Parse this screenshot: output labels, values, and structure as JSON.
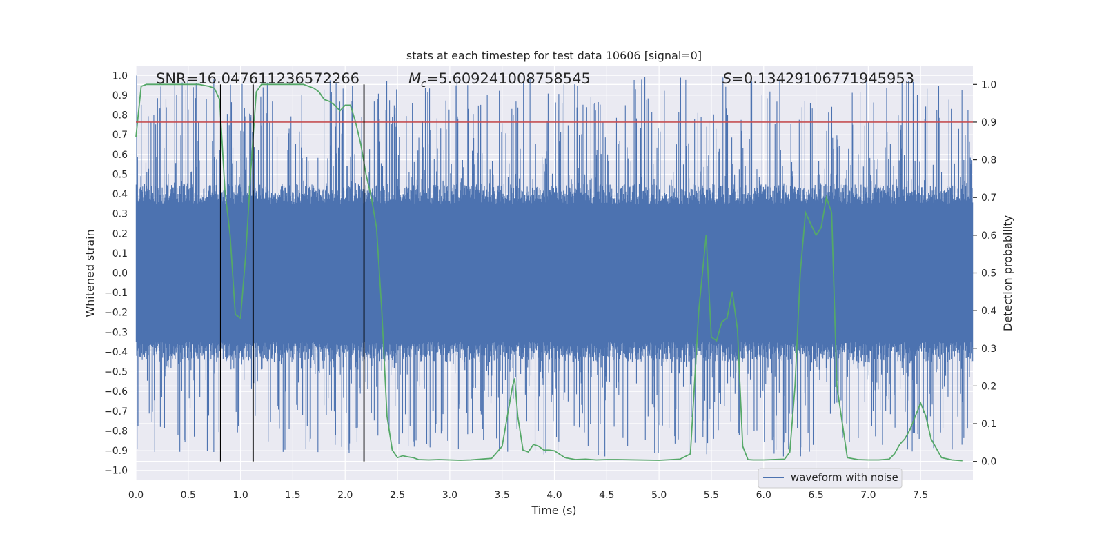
{
  "chart_data": {
    "type": "line",
    "title": "stats at each timestep for test data 10606 [signal=0]",
    "xlabel": "Time (s)",
    "ylabel": "Whitened strain",
    "y2label": "Detection probability",
    "xlim": [
      0.0,
      8.0
    ],
    "ylim": [
      -1.05,
      1.05
    ],
    "y2lim": [
      -0.05,
      1.05
    ],
    "x_ticks": [
      "0.0",
      "0.5",
      "1.0",
      "1.5",
      "2.0",
      "2.5",
      "3.0",
      "3.5",
      "4.0",
      "4.5",
      "5.0",
      "5.5",
      "6.0",
      "6.5",
      "7.0",
      "7.5"
    ],
    "y_ticks": [
      "1.0",
      "0.9",
      "0.8",
      "0.7",
      "0.6",
      "0.5",
      "0.4",
      "0.3",
      "0.2",
      "0.1",
      "0.0",
      "−0.1",
      "−0.2",
      "−0.3",
      "−0.4",
      "−0.5",
      "−0.6",
      "−0.7",
      "−0.8",
      "−0.9",
      "−1.0"
    ],
    "y2_ticks": [
      "1.0",
      "0.9",
      "0.8",
      "0.7",
      "0.6",
      "0.5",
      "0.4",
      "0.3",
      "0.2",
      "0.1",
      "0.0"
    ],
    "grid": true,
    "legend_position": "bottom-right",
    "annotations": {
      "snr": "SNR=16.047611236572266",
      "mc_symbol": "M",
      "mc_sub": "c",
      "mc_value": "=5.609241008758545",
      "s_symbol": "S",
      "s_value": "=0.13429106771945953"
    },
    "series": [
      {
        "name": "waveform with noise",
        "axis": "left",
        "color": "#4c72b0",
        "style": "noise",
        "envelope_typical": 0.35,
        "envelope_max": 1.0,
        "envelope_min": -0.93
      },
      {
        "axis": "right",
        "color": "#55a868",
        "x": [
          0.0,
          0.05,
          0.1,
          0.2,
          0.3,
          0.4,
          0.5,
          0.6,
          0.7,
          0.75,
          0.8,
          0.85,
          0.9,
          0.95,
          1.0,
          1.05,
          1.1,
          1.15,
          1.2,
          1.25,
          1.3,
          1.4,
          1.5,
          1.6,
          1.7,
          1.75,
          1.8,
          1.85,
          1.9,
          1.95,
          2.0,
          2.05,
          2.1,
          2.15,
          2.2,
          2.25,
          2.3,
          2.35,
          2.4,
          2.45,
          2.5,
          2.55,
          2.6,
          2.65,
          2.7,
          2.8,
          2.9,
          3.0,
          3.1,
          3.2,
          3.3,
          3.4,
          3.5,
          3.55,
          3.6,
          3.62,
          3.65,
          3.7,
          3.75,
          3.8,
          3.85,
          3.9,
          3.95,
          4.0,
          4.1,
          4.2,
          4.3,
          4.4,
          4.5,
          4.6,
          4.8,
          5.0,
          5.2,
          5.3,
          5.38,
          5.45,
          5.5,
          5.55,
          5.6,
          5.65,
          5.7,
          5.75,
          5.8,
          5.85,
          5.9,
          6.0,
          6.2,
          6.25,
          6.3,
          6.35,
          6.4,
          6.5,
          6.55,
          6.6,
          6.65,
          6.7,
          6.8,
          6.9,
          7.0,
          7.1,
          7.2,
          7.25,
          7.3,
          7.35,
          7.4,
          7.45,
          7.5,
          7.55,
          7.6,
          7.7,
          7.8,
          7.9
        ],
        "values": [
          0.86,
          0.995,
          1.0,
          1.0,
          1.0,
          1.0,
          1.0,
          1.0,
          0.995,
          0.99,
          0.96,
          0.72,
          0.6,
          0.39,
          0.38,
          0.55,
          0.78,
          0.98,
          1.0,
          1.0,
          1.0,
          1.0,
          1.0,
          1.0,
          0.99,
          0.98,
          0.96,
          0.955,
          0.945,
          0.93,
          0.945,
          0.945,
          0.9,
          0.84,
          0.76,
          0.7,
          0.62,
          0.4,
          0.12,
          0.03,
          0.01,
          0.015,
          0.012,
          0.01,
          0.005,
          0.004,
          0.005,
          0.004,
          0.003,
          0.004,
          0.006,
          0.008,
          0.04,
          0.12,
          0.2,
          0.22,
          0.12,
          0.03,
          0.025,
          0.045,
          0.04,
          0.03,
          0.03,
          0.028,
          0.01,
          0.005,
          0.006,
          0.004,
          0.005,
          0.005,
          0.004,
          0.003,
          0.006,
          0.02,
          0.4,
          0.6,
          0.33,
          0.32,
          0.37,
          0.38,
          0.45,
          0.35,
          0.04,
          0.005,
          0.004,
          0.004,
          0.006,
          0.025,
          0.2,
          0.5,
          0.66,
          0.6,
          0.62,
          0.7,
          0.66,
          0.2,
          0.01,
          0.005,
          0.004,
          0.004,
          0.006,
          0.02,
          0.045,
          0.06,
          0.085,
          0.12,
          0.155,
          0.12,
          0.06,
          0.01,
          0.004,
          0.002
        ]
      }
    ],
    "threshold": {
      "value": 0.9,
      "color": "#c44e52"
    },
    "event_lines": [
      0.81,
      1.12,
      2.18
    ]
  }
}
